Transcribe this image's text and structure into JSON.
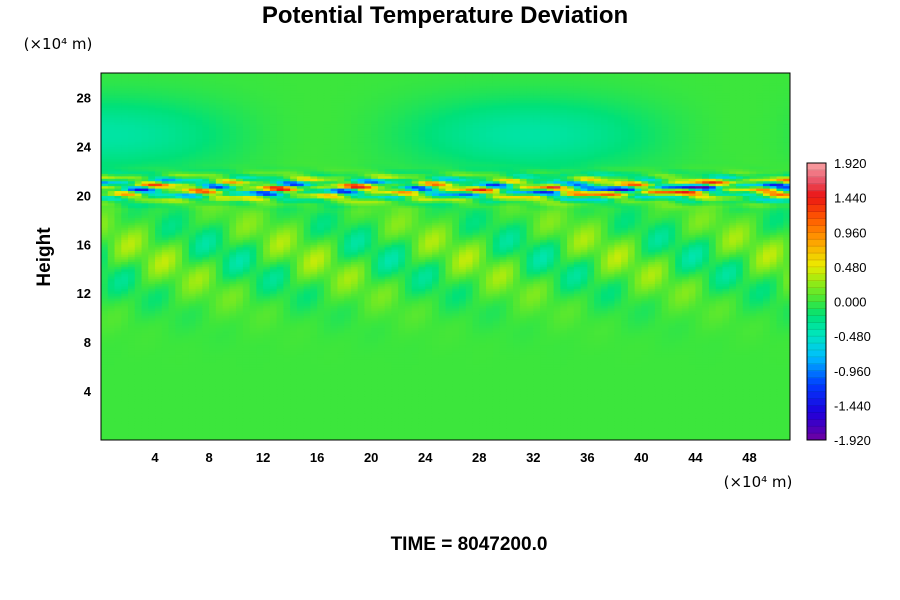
{
  "chart_data": {
    "type": "heatmap",
    "title": "Potential Temperature Deviation",
    "ylabel": "Height",
    "x_unit_label": "(×10⁴ m)",
    "y_unit_label": "(×10⁴ m)",
    "footer": "TIME = 8047200.0",
    "x_ticks": [
      4,
      8,
      12,
      16,
      20,
      24,
      28,
      32,
      36,
      40,
      44,
      48
    ],
    "y_ticks": [
      4,
      8,
      12,
      16,
      20,
      24,
      28
    ],
    "xlim": [
      0,
      51
    ],
    "ylim": [
      0,
      30
    ],
    "colorbar": {
      "min": -1.92,
      "max": 1.92,
      "tick_labels": [
        "1.920",
        "1.440",
        "0.960",
        "0.480",
        "0.000",
        "-0.480",
        "-0.960",
        "-1.440",
        "-1.920"
      ]
    },
    "field_features": [
      {
        "description": "strong alternating positive/negative layer",
        "y_range": [
          19.5,
          21.5
        ],
        "value_range": [
          -1.92,
          1.92
        ]
      },
      {
        "description": "weak perturbations",
        "y_range": [
          10,
          19
        ],
        "value_range": [
          -0.3,
          0.6
        ]
      },
      {
        "description": "near-zero background",
        "y_range": [
          0,
          10
        ],
        "value_range": [
          -0.1,
          0.1
        ]
      },
      {
        "description": "near-zero background",
        "y_range": [
          22,
          30
        ],
        "value_range": [
          -0.3,
          0.2
        ]
      }
    ]
  }
}
